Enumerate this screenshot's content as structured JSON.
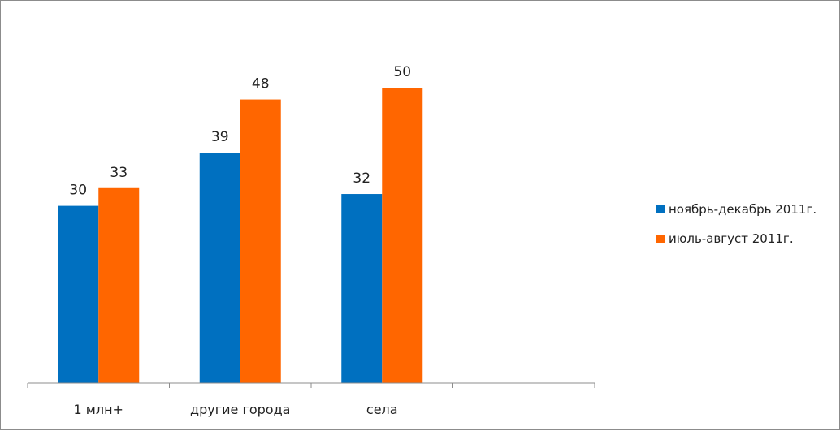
{
  "chart_data": {
    "type": "bar",
    "title": "",
    "xlabel": "",
    "ylabel": "",
    "categories": [
      "1 млн+",
      "другие города",
      "села",
      ""
    ],
    "series": [
      {
        "name": "ноябрь-декабрь 2011г.",
        "color": "#0070C0",
        "values": [
          30,
          39,
          32,
          null
        ]
      },
      {
        "name": "июль-август 2011г.",
        "color": "#FF6600",
        "values": [
          33,
          48,
          50,
          null
        ]
      }
    ],
    "ylim": [
      0,
      60
    ],
    "grid": false,
    "data_labels": true,
    "legend_position": "right"
  }
}
